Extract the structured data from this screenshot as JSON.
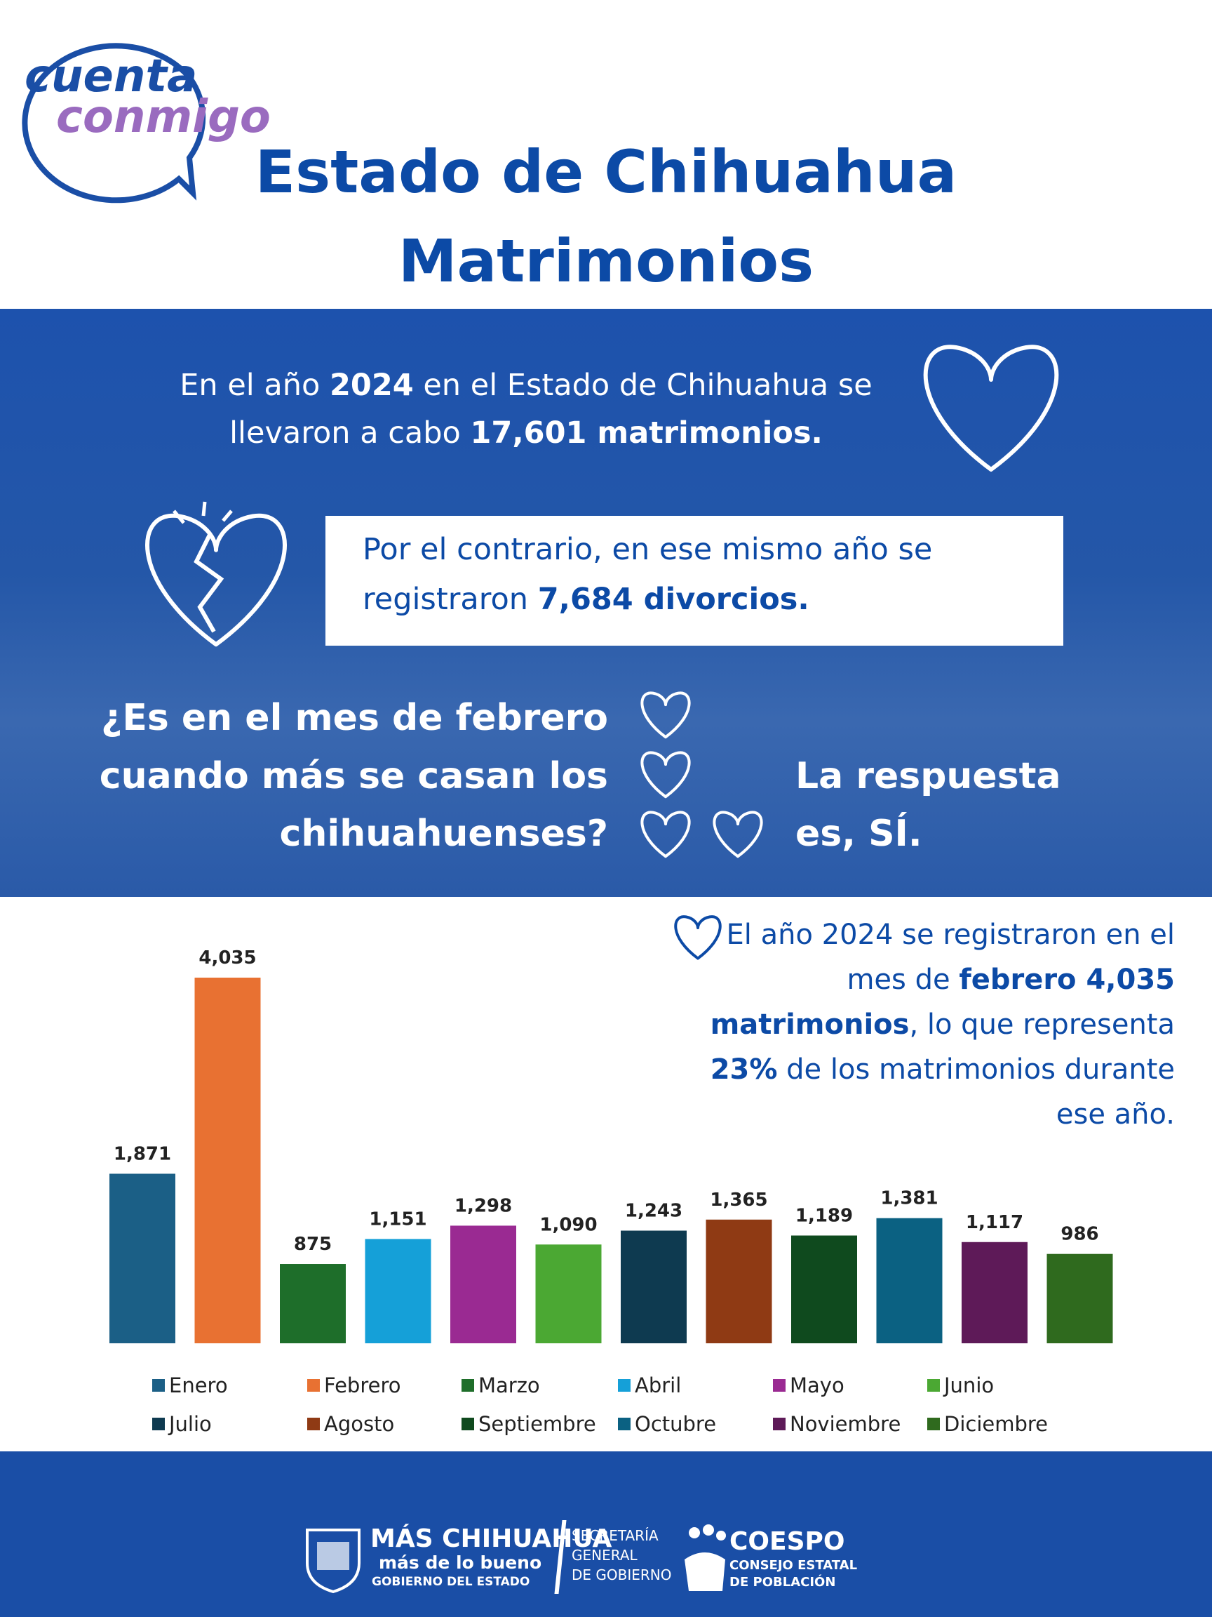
{
  "logo": [
    "cuenta",
    "conmigo"
  ],
  "header": {
    "title": "Estado de Chihuahua",
    "subtitle": "Matrimonios"
  },
  "intro": [
    "En el año ",
    "2024",
    " en el Estado de Chihuahua se llevaron a cabo ",
    "17,601 matrimonios."
  ],
  "divorces": [
    "Por el contrario, en ese mismo año se registraron ",
    "7,684 divorcios."
  ],
  "question": [
    "¿Es en el mes de febrero",
    "cuando más se casan los",
    "chihuahuenses?"
  ],
  "answer": [
    "La respuesta",
    "es, SÍ."
  ],
  "highlight": [
    "El año 2024 se registraron en el mes de ",
    "febrero 4,035 matrimonios",
    ", lo que representa ",
    "23%",
    " de los matrimonios durante ese año."
  ],
  "chart_data": {
    "type": "bar",
    "categories": [
      "Enero",
      "Febrero",
      "Marzo",
      "Abril",
      "Mayo",
      "Junio",
      "Julio",
      "Agosto",
      "Septiembre",
      "Octubre",
      "Noviembre",
      "Diciembre"
    ],
    "values": [
      1871,
      4035,
      875,
      1151,
      1298,
      1090,
      1243,
      1365,
      1189,
      1381,
      1117,
      986
    ],
    "value_labels": [
      "1,871",
      "4,035",
      "875",
      "1,151",
      "1,298",
      "1,090",
      "1,243",
      "1,365",
      "1,189",
      "1,381",
      "1,117",
      "986"
    ],
    "colors": [
      "#1b5f86",
      "#e87132",
      "#1e6e2a",
      "#15a0d8",
      "#9a2a92",
      "#4ba833",
      "#0e3a50",
      "#8f3a14",
      "#0f4a1e",
      "#0b6182",
      "#5e1a58",
      "#2f6a1e"
    ],
    "legend": true
  },
  "footer": {
    "gov": [
      "MÁS CHIHUAHUA",
      "más de lo bueno",
      "GOBIERNO DEL ESTADO"
    ],
    "secretaria": [
      "SECRETARÍA",
      "GENERAL",
      "DE GOBIERNO"
    ],
    "coespo": [
      "COESPO",
      "CONSEJO ESTATAL",
      "DE POBLACIÓN"
    ]
  }
}
